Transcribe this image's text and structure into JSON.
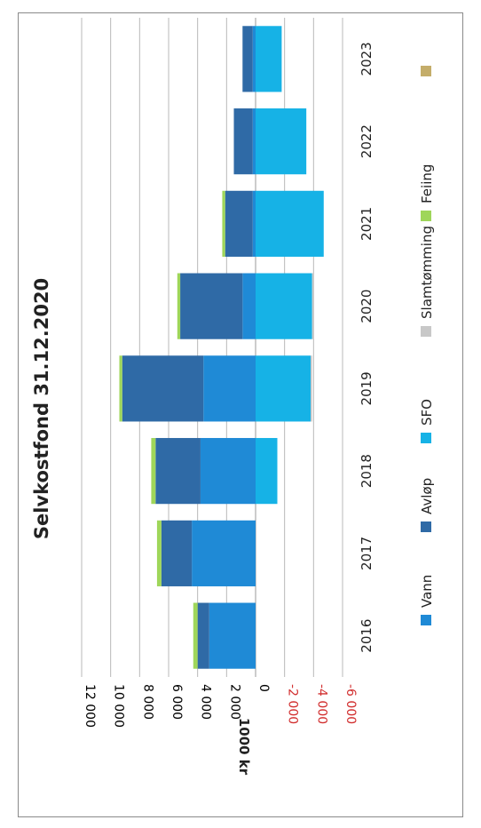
{
  "chart_data": {
    "type": "bar",
    "stacked": true,
    "orientation": "rotated",
    "title": "Selvkostfond 31.12.2020",
    "ylabel": "1000 kr",
    "xlabel": "",
    "ylim": [
      -6000,
      12000
    ],
    "yticks": [
      12000,
      10000,
      8000,
      6000,
      4000,
      2000,
      0,
      -2000,
      -4000,
      -6000
    ],
    "ytick_labels": [
      "12 000",
      "10 000",
      "8 000",
      "6 000",
      "4 000",
      "2 000",
      "0",
      "-2 000",
      "-4 000",
      "-6 000"
    ],
    "categories": [
      "2016",
      "2017",
      "2018",
      "2019",
      "2020",
      "2021",
      "2022",
      "2023"
    ],
    "series": [
      {
        "name": "Vann",
        "color": "#1f8ad6",
        "values": [
          3200,
          4400,
          3800,
          3600,
          900,
          200,
          200,
          200
        ]
      },
      {
        "name": "Avløp",
        "color": "#2f6aa6",
        "values": [
          800,
          2100,
          3100,
          5600,
          4300,
          1900,
          1300,
          700
        ]
      },
      {
        "name": "SFO",
        "color": "#16b2e6",
        "values": [
          0,
          0,
          -1500,
          -3800,
          -3900,
          -4700,
          -3500,
          -1800
        ]
      },
      {
        "name": "Slamtømming",
        "color": "#c8c8c8",
        "values": [
          0,
          0,
          0,
          -100,
          -100,
          0,
          0,
          0
        ]
      },
      {
        "name": "Feiing",
        "color": "#9fd65a",
        "values": [
          300,
          300,
          300,
          200,
          200,
          200,
          0,
          0
        ]
      },
      {
        "name": "",
        "color": "#c4ad6a",
        "values": [
          0,
          0,
          0,
          0,
          0,
          0,
          0,
          0
        ]
      }
    ],
    "grid": true,
    "legend": "bottom",
    "axis_label_color": "#000000",
    "negative_tick_color": "#d23030"
  }
}
